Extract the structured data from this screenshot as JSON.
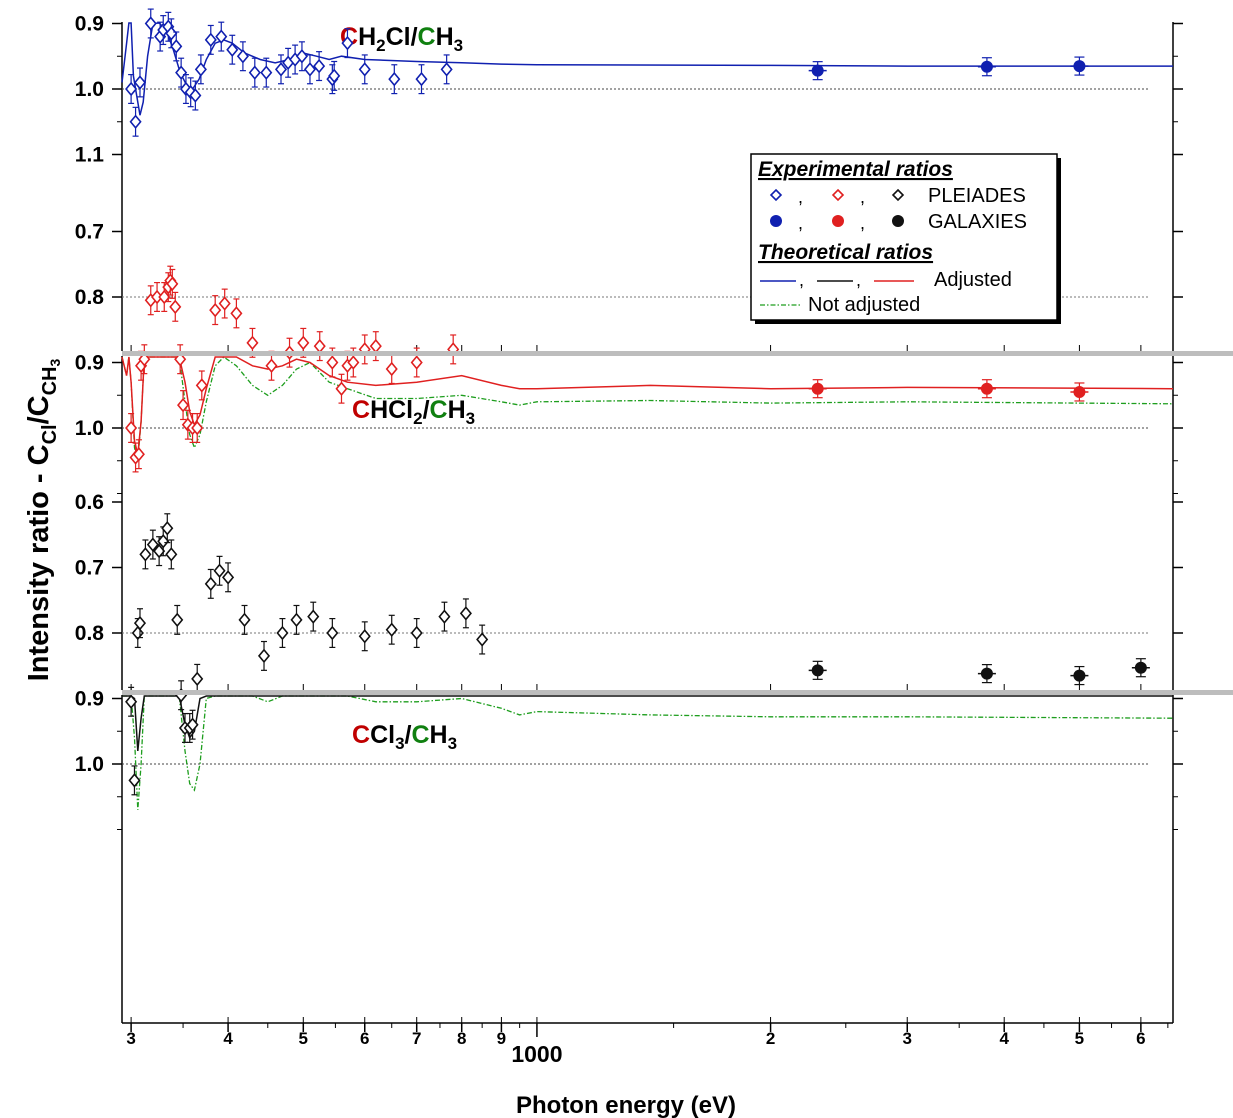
{
  "figure": {
    "ylabel_main": "Intensity ratio - C",
    "ylabel_sub1": "Cl",
    "ylabel_sep": "/C",
    "ylabel_sub2": "CH",
    "ylabel_sub3": "3",
    "xlabel": "Photon energy (eV)",
    "colors": {
      "blue": "#1020b0",
      "red": "#e02020",
      "black": "#111111",
      "green": "#1e9e1e",
      "title_red": "#c00000",
      "title_green": "#108010"
    }
  },
  "xaxis": {
    "scale": "log",
    "range_ev": [
      292,
      6600
    ],
    "ticks": [
      {
        "v": 300,
        "label": "3"
      },
      {
        "v": 400,
        "label": "4"
      },
      {
        "v": 500,
        "label": "5"
      },
      {
        "v": 600,
        "label": "6"
      },
      {
        "v": 700,
        "label": "7"
      },
      {
        "v": 800,
        "label": "8"
      },
      {
        "v": 900,
        "label": "9"
      },
      {
        "v": 1000,
        "label": "1000"
      },
      {
        "v": 2000,
        "label": "2"
      },
      {
        "v": 3000,
        "label": "3"
      },
      {
        "v": 4000,
        "label": "4"
      },
      {
        "v": 5000,
        "label": "5"
      },
      {
        "v": 6000,
        "label": "6"
      }
    ]
  },
  "legend": {
    "exp_title": "Experimental ratios",
    "pleiades": "PLEIADES",
    "galaxies": "GALAXIES",
    "theo_title": "Theoretical ratios",
    "adjusted": "Adjusted",
    "not_adjusted": "Not adjusted",
    "comma": ","
  },
  "chart_data": [
    {
      "type": "scatter",
      "panel": "CH2Cl/CH3",
      "title": {
        "c1": "C",
        "p1": "H",
        "s1": "2",
        "p2": "Cl/",
        "c2": "C",
        "p3": "H",
        "s2": "3"
      },
      "ylim": [
        0.6,
        1.1
      ],
      "yticks": [
        0.7,
        0.8,
        0.9,
        1.0,
        1.1
      ],
      "ytick_labels": [
        "0.7",
        "0.8",
        "0.9",
        "1.0",
        "1.1"
      ],
      "color": "blue",
      "pleiades": [
        [
          300,
          1.0
        ],
        [
          304,
          1.05
        ],
        [
          308,
          0.99
        ],
        [
          318,
          0.9
        ],
        [
          327,
          0.92
        ],
        [
          330,
          0.91
        ],
        [
          335,
          0.905
        ],
        [
          338,
          0.915
        ],
        [
          343,
          0.935
        ],
        [
          348,
          0.975
        ],
        [
          353,
          1.0
        ],
        [
          358,
          1.005
        ],
        [
          363,
          1.01
        ],
        [
          369,
          0.97
        ],
        [
          380,
          0.925
        ],
        [
          392,
          0.92
        ],
        [
          405,
          0.94
        ],
        [
          418,
          0.95
        ],
        [
          433,
          0.975
        ],
        [
          448,
          0.975
        ],
        [
          468,
          0.97
        ],
        [
          478,
          0.96
        ],
        [
          488,
          0.955
        ],
        [
          498,
          0.95
        ],
        [
          510,
          0.97
        ],
        [
          524,
          0.965
        ],
        [
          545,
          0.985
        ],
        [
          548,
          0.98
        ],
        [
          570,
          0.93
        ],
        [
          600,
          0.97
        ],
        [
          655,
          0.985
        ],
        [
          710,
          0.985
        ],
        [
          765,
          0.97
        ]
      ],
      "pleiades_err": 0.022,
      "galaxies": [
        [
          2300,
          0.972
        ],
        [
          3800,
          0.966
        ],
        [
          5000,
          0.965
        ]
      ],
      "adjusted": [
        [
          292,
          0.99
        ],
        [
          296,
          0.93
        ],
        [
          298,
          0.74
        ],
        [
          300,
          0.87
        ],
        [
          302,
          0.98
        ],
        [
          305,
          1.01
        ],
        [
          308,
          1.04
        ],
        [
          311,
          1.02
        ],
        [
          315,
          0.95
        ],
        [
          320,
          0.9
        ],
        [
          326,
          0.895
        ],
        [
          333,
          0.91
        ],
        [
          340,
          0.94
        ],
        [
          347,
          0.975
        ],
        [
          354,
          0.995
        ],
        [
          360,
          1.0
        ],
        [
          367,
          0.985
        ],
        [
          375,
          0.955
        ],
        [
          385,
          0.93
        ],
        [
          395,
          0.925
        ],
        [
          405,
          0.93
        ],
        [
          420,
          0.945
        ],
        [
          440,
          0.955
        ],
        [
          460,
          0.96
        ],
        [
          480,
          0.955
        ],
        [
          500,
          0.945
        ],
        [
          520,
          0.95
        ],
        [
          540,
          0.955
        ],
        [
          560,
          0.95
        ],
        [
          600,
          0.955
        ],
        [
          700,
          0.958
        ],
        [
          800,
          0.96
        ],
        [
          900,
          0.962
        ],
        [
          1000,
          0.963
        ],
        [
          2000,
          0.964
        ],
        [
          3000,
          0.965
        ],
        [
          6600,
          0.965
        ]
      ]
    },
    {
      "type": "scatter",
      "panel": "CHCl2/CH3",
      "title": {
        "c1": "C",
        "p1": "HCl",
        "s1": "2",
        "p2": "/",
        "c2": "C",
        "p3": "H",
        "s2": "3"
      },
      "ylim": [
        0.6,
        1.1
      ],
      "yticks": [
        0.7,
        0.8,
        0.9,
        1.0
      ],
      "ytick_labels": [
        "0.7",
        "0.8",
        "0.9",
        "1.0"
      ],
      "color": "red",
      "pleiades": [
        [
          300,
          1.0
        ],
        [
          304,
          1.045
        ],
        [
          307,
          1.04
        ],
        [
          309,
          0.905
        ],
        [
          312,
          0.895
        ],
        [
          318,
          0.805
        ],
        [
          324,
          0.8
        ],
        [
          331,
          0.8
        ],
        [
          335,
          0.785
        ],
        [
          337,
          0.775
        ],
        [
          339,
          0.78
        ],
        [
          342,
          0.815
        ],
        [
          347,
          0.895
        ],
        [
          350,
          0.965
        ],
        [
          355,
          0.995
        ],
        [
          360,
          1.0
        ],
        [
          365,
          1.0
        ],
        [
          370,
          0.935
        ],
        [
          385,
          0.82
        ],
        [
          396,
          0.81
        ],
        [
          410,
          0.825
        ],
        [
          430,
          0.87
        ],
        [
          455,
          0.905
        ],
        [
          480,
          0.885
        ],
        [
          500,
          0.87
        ],
        [
          525,
          0.875
        ],
        [
          545,
          0.9
        ],
        [
          560,
          0.94
        ],
        [
          570,
          0.905
        ],
        [
          580,
          0.9
        ],
        [
          600,
          0.88
        ],
        [
          620,
          0.875
        ],
        [
          650,
          0.91
        ],
        [
          700,
          0.9
        ],
        [
          780,
          0.88
        ]
      ],
      "pleiades_err": 0.022,
      "galaxies": [
        [
          2300,
          0.94
        ],
        [
          3800,
          0.94
        ],
        [
          5000,
          0.945
        ]
      ],
      "adjusted": [
        [
          292,
          0.8
        ],
        [
          296,
          0.92
        ],
        [
          298,
          0.74
        ],
        [
          300,
          0.93
        ],
        [
          303,
          1.02
        ],
        [
          306,
          1.04
        ],
        [
          309,
          0.99
        ],
        [
          312,
          0.87
        ],
        [
          316,
          0.8
        ],
        [
          322,
          0.79
        ],
        [
          328,
          0.805
        ],
        [
          334,
          0.815
        ],
        [
          340,
          0.8
        ],
        [
          346,
          0.85
        ],
        [
          352,
          0.93
        ],
        [
          357,
          0.975
        ],
        [
          362,
          0.995
        ],
        [
          368,
          0.98
        ],
        [
          375,
          0.94
        ],
        [
          385,
          0.89
        ],
        [
          395,
          0.875
        ],
        [
          410,
          0.885
        ],
        [
          430,
          0.905
        ],
        [
          450,
          0.91
        ],
        [
          470,
          0.905
        ],
        [
          490,
          0.895
        ],
        [
          510,
          0.9
        ],
        [
          540,
          0.92
        ],
        [
          570,
          0.93
        ],
        [
          620,
          0.935
        ],
        [
          700,
          0.93
        ],
        [
          800,
          0.92
        ],
        [
          900,
          0.935
        ],
        [
          950,
          0.94
        ],
        [
          1000,
          0.94
        ],
        [
          1400,
          0.935
        ],
        [
          2000,
          0.94
        ],
        [
          3000,
          0.938
        ],
        [
          6600,
          0.94
        ]
      ],
      "not_adjusted": [
        [
          292,
          0.8
        ],
        [
          296,
          0.92
        ],
        [
          298,
          0.74
        ],
        [
          300,
          0.93
        ],
        [
          303,
          1.03
        ],
        [
          306,
          1.05
        ],
        [
          309,
          0.99
        ],
        [
          312,
          0.87
        ],
        [
          316,
          0.8
        ],
        [
          322,
          0.82
        ],
        [
          328,
          0.835
        ],
        [
          334,
          0.83
        ],
        [
          340,
          0.81
        ],
        [
          346,
          0.86
        ],
        [
          352,
          0.96
        ],
        [
          357,
          1.01
        ],
        [
          362,
          1.03
        ],
        [
          368,
          1.01
        ],
        [
          375,
          0.96
        ],
        [
          385,
          0.905
        ],
        [
          395,
          0.89
        ],
        [
          410,
          0.905
        ],
        [
          430,
          0.935
        ],
        [
          450,
          0.95
        ],
        [
          470,
          0.935
        ],
        [
          490,
          0.91
        ],
        [
          510,
          0.9
        ],
        [
          540,
          0.93
        ],
        [
          570,
          0.94
        ],
        [
          620,
          0.955
        ],
        [
          700,
          0.955
        ],
        [
          800,
          0.95
        ],
        [
          900,
          0.96
        ],
        [
          950,
          0.965
        ],
        [
          1000,
          0.96
        ],
        [
          1400,
          0.958
        ],
        [
          2000,
          0.962
        ],
        [
          3000,
          0.96
        ],
        [
          6600,
          0.963
        ]
      ]
    },
    {
      "type": "scatter",
      "panel": "CCl3/CH3",
      "title": {
        "c1": "C",
        "p1": "Cl",
        "s1": "3",
        "p2": "/",
        "c2": "C",
        "p3": "H",
        "s2": "3"
      },
      "ylim": [
        0.6,
        1.1
      ],
      "yticks": [
        0.6,
        0.7,
        0.8,
        0.9,
        1.0
      ],
      "ytick_labels": [
        "0.6",
        "0.7",
        "0.8",
        "0.9",
        "1.0"
      ],
      "color": "black",
      "pleiades": [
        [
          300,
          0.905
        ],
        [
          303,
          1.025
        ],
        [
          306,
          0.8
        ],
        [
          308,
          0.785
        ],
        [
          313,
          0.68
        ],
        [
          320,
          0.665
        ],
        [
          326,
          0.675
        ],
        [
          330,
          0.66
        ],
        [
          334,
          0.64
        ],
        [
          338,
          0.68
        ],
        [
          344,
          0.78
        ],
        [
          348,
          0.895
        ],
        [
          352,
          0.945
        ],
        [
          357,
          0.945
        ],
        [
          360,
          0.94
        ],
        [
          365,
          0.87
        ],
        [
          380,
          0.725
        ],
        [
          390,
          0.705
        ],
        [
          400,
          0.715
        ],
        [
          420,
          0.78
        ],
        [
          445,
          0.835
        ],
        [
          470,
          0.8
        ],
        [
          490,
          0.78
        ],
        [
          515,
          0.775
        ],
        [
          545,
          0.8
        ],
        [
          600,
          0.805
        ],
        [
          650,
          0.795
        ],
        [
          700,
          0.8
        ],
        [
          760,
          0.775
        ],
        [
          810,
          0.77
        ],
        [
          850,
          0.81
        ]
      ],
      "pleiades_err": 0.022,
      "galaxies": [
        [
          2300,
          0.857
        ],
        [
          3800,
          0.862
        ],
        [
          5000,
          0.865
        ],
        [
          6000,
          0.853
        ]
      ],
      "adjusted": [
        [
          292,
          0.75
        ],
        [
          296,
          0.84
        ],
        [
          298,
          0.645
        ],
        [
          300,
          0.85
        ],
        [
          303,
          0.9
        ],
        [
          306,
          0.98
        ],
        [
          309,
          0.93
        ],
        [
          312,
          0.78
        ],
        [
          316,
          0.69
        ],
        [
          322,
          0.705
        ],
        [
          328,
          0.72
        ],
        [
          334,
          0.69
        ],
        [
          340,
          0.69
        ],
        [
          346,
          0.8
        ],
        [
          352,
          0.94
        ],
        [
          357,
          0.96
        ],
        [
          362,
          0.95
        ],
        [
          368,
          0.9
        ],
        [
          375,
          0.82
        ],
        [
          385,
          0.76
        ],
        [
          395,
          0.76
        ],
        [
          410,
          0.78
        ],
        [
          430,
          0.82
        ],
        [
          450,
          0.84
        ],
        [
          470,
          0.83
        ],
        [
          490,
          0.8
        ],
        [
          510,
          0.79
        ],
        [
          540,
          0.82
        ],
        [
          570,
          0.835
        ],
        [
          620,
          0.84
        ],
        [
          700,
          0.84
        ],
        [
          800,
          0.835
        ],
        [
          900,
          0.85
        ],
        [
          950,
          0.852
        ],
        [
          1000,
          0.842
        ],
        [
          1400,
          0.852
        ],
        [
          2000,
          0.853
        ],
        [
          3000,
          0.854
        ],
        [
          6600,
          0.855
        ]
      ],
      "not_adjusted": [
        [
          292,
          0.75
        ],
        [
          296,
          0.84
        ],
        [
          298,
          0.645
        ],
        [
          300,
          0.85
        ],
        [
          303,
          0.96
        ],
        [
          306,
          1.07
        ],
        [
          309,
          1.0
        ],
        [
          312,
          0.8
        ],
        [
          316,
          0.74
        ],
        [
          322,
          0.77
        ],
        [
          328,
          0.775
        ],
        [
          334,
          0.745
        ],
        [
          340,
          0.73
        ],
        [
          346,
          0.85
        ],
        [
          352,
          0.98
        ],
        [
          357,
          1.03
        ],
        [
          362,
          1.04
        ],
        [
          368,
          1.0
        ],
        [
          375,
          0.9
        ],
        [
          385,
          0.82
        ],
        [
          395,
          0.82
        ],
        [
          410,
          0.85
        ],
        [
          430,
          0.895
        ],
        [
          450,
          0.905
        ],
        [
          470,
          0.89
        ],
        [
          490,
          0.86
        ],
        [
          510,
          0.845
        ],
        [
          540,
          0.875
        ],
        [
          570,
          0.895
        ],
        [
          620,
          0.905
        ],
        [
          700,
          0.905
        ],
        [
          800,
          0.9
        ],
        [
          900,
          0.915
        ],
        [
          950,
          0.925
        ],
        [
          1000,
          0.92
        ],
        [
          1400,
          0.925
        ],
        [
          2000,
          0.928
        ],
        [
          3000,
          0.928
        ],
        [
          6600,
          0.93
        ]
      ]
    }
  ]
}
